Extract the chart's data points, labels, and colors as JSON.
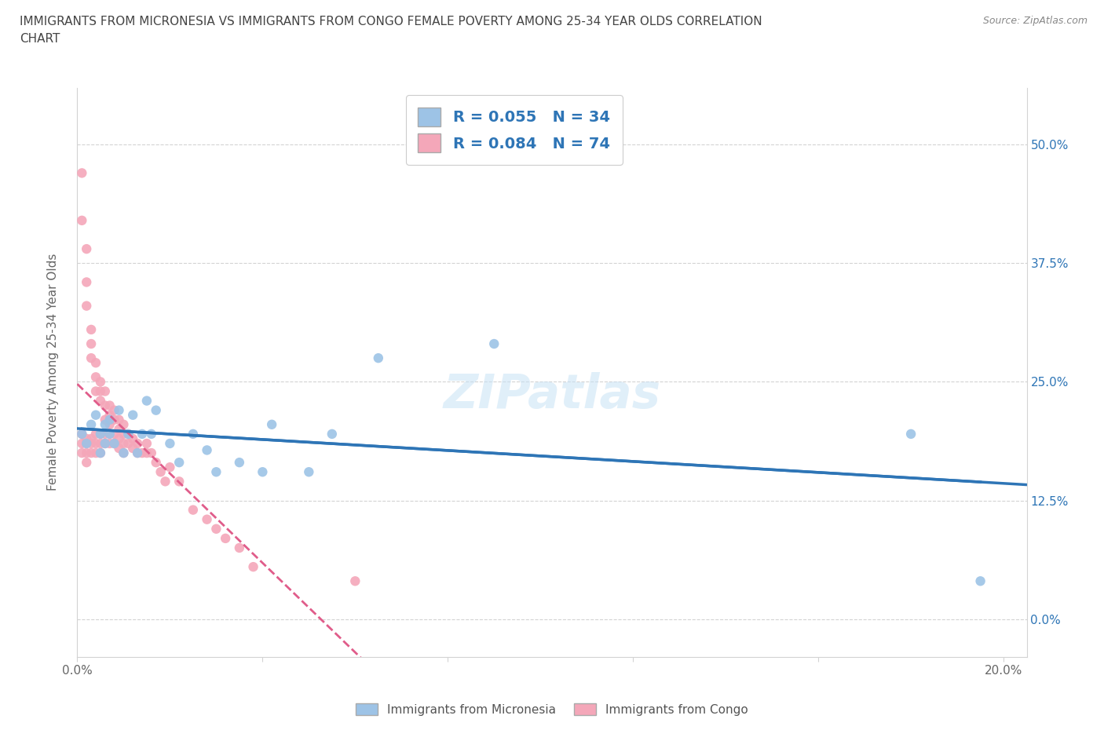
{
  "title_line1": "IMMIGRANTS FROM MICRONESIA VS IMMIGRANTS FROM CONGO FEMALE POVERTY AMONG 25-34 YEAR OLDS CORRELATION",
  "title_line2": "CHART",
  "source": "Source: ZipAtlas.com",
  "ylabel": "Female Poverty Among 25-34 Year Olds",
  "xlim": [
    0.0,
    0.205
  ],
  "ylim": [
    -0.04,
    0.56
  ],
  "yticks": [
    0.0,
    0.125,
    0.25,
    0.375,
    0.5
  ],
  "yticklabels": [
    "0.0%",
    "12.5%",
    "25.0%",
    "37.5%",
    "50.0%"
  ],
  "xticks": [
    0.0,
    0.04,
    0.08,
    0.12,
    0.16,
    0.2
  ],
  "xticklabels": [
    "0.0%",
    "",
    "",
    "",
    "",
    "20.0%"
  ],
  "micronesia_color": "#9dc3e6",
  "congo_color": "#f4a7b9",
  "micronesia_line_color": "#2e75b6",
  "congo_line_color": "#e05c8a",
  "R_micronesia": 0.055,
  "N_micronesia": 34,
  "R_congo": 0.084,
  "N_congo": 74,
  "micronesia_x": [
    0.001,
    0.002,
    0.003,
    0.004,
    0.005,
    0.005,
    0.006,
    0.006,
    0.007,
    0.007,
    0.008,
    0.009,
    0.01,
    0.011,
    0.012,
    0.013,
    0.014,
    0.015,
    0.016,
    0.017,
    0.02,
    0.022,
    0.025,
    0.028,
    0.03,
    0.035,
    0.04,
    0.042,
    0.05,
    0.055,
    0.065,
    0.09,
    0.18,
    0.195
  ],
  "micronesia_y": [
    0.195,
    0.185,
    0.205,
    0.215,
    0.195,
    0.175,
    0.205,
    0.185,
    0.195,
    0.21,
    0.185,
    0.22,
    0.175,
    0.195,
    0.215,
    0.175,
    0.195,
    0.23,
    0.195,
    0.22,
    0.185,
    0.165,
    0.195,
    0.178,
    0.155,
    0.165,
    0.155,
    0.205,
    0.155,
    0.195,
    0.275,
    0.29,
    0.195,
    0.04
  ],
  "congo_x": [
    0.001,
    0.001,
    0.001,
    0.001,
    0.001,
    0.002,
    0.002,
    0.002,
    0.002,
    0.002,
    0.002,
    0.002,
    0.003,
    0.003,
    0.003,
    0.003,
    0.003,
    0.003,
    0.004,
    0.004,
    0.004,
    0.004,
    0.004,
    0.004,
    0.005,
    0.005,
    0.005,
    0.005,
    0.005,
    0.005,
    0.006,
    0.006,
    0.006,
    0.006,
    0.006,
    0.007,
    0.007,
    0.007,
    0.007,
    0.007,
    0.008,
    0.008,
    0.008,
    0.008,
    0.009,
    0.009,
    0.009,
    0.009,
    0.01,
    0.01,
    0.01,
    0.01,
    0.011,
    0.011,
    0.012,
    0.012,
    0.013,
    0.013,
    0.014,
    0.015,
    0.015,
    0.016,
    0.017,
    0.018,
    0.019,
    0.02,
    0.022,
    0.025,
    0.028,
    0.03,
    0.032,
    0.035,
    0.038,
    0.06
  ],
  "congo_y": [
    0.47,
    0.42,
    0.195,
    0.185,
    0.175,
    0.39,
    0.355,
    0.33,
    0.19,
    0.185,
    0.175,
    0.165,
    0.305,
    0.29,
    0.275,
    0.19,
    0.185,
    0.175,
    0.27,
    0.255,
    0.24,
    0.195,
    0.185,
    0.175,
    0.25,
    0.24,
    0.23,
    0.195,
    0.185,
    0.175,
    0.24,
    0.225,
    0.21,
    0.195,
    0.185,
    0.225,
    0.215,
    0.205,
    0.195,
    0.185,
    0.22,
    0.21,
    0.195,
    0.185,
    0.21,
    0.2,
    0.19,
    0.18,
    0.205,
    0.195,
    0.185,
    0.175,
    0.195,
    0.185,
    0.19,
    0.18,
    0.185,
    0.175,
    0.175,
    0.185,
    0.175,
    0.175,
    0.165,
    0.155,
    0.145,
    0.16,
    0.145,
    0.115,
    0.105,
    0.095,
    0.085,
    0.075,
    0.055,
    0.04
  ]
}
